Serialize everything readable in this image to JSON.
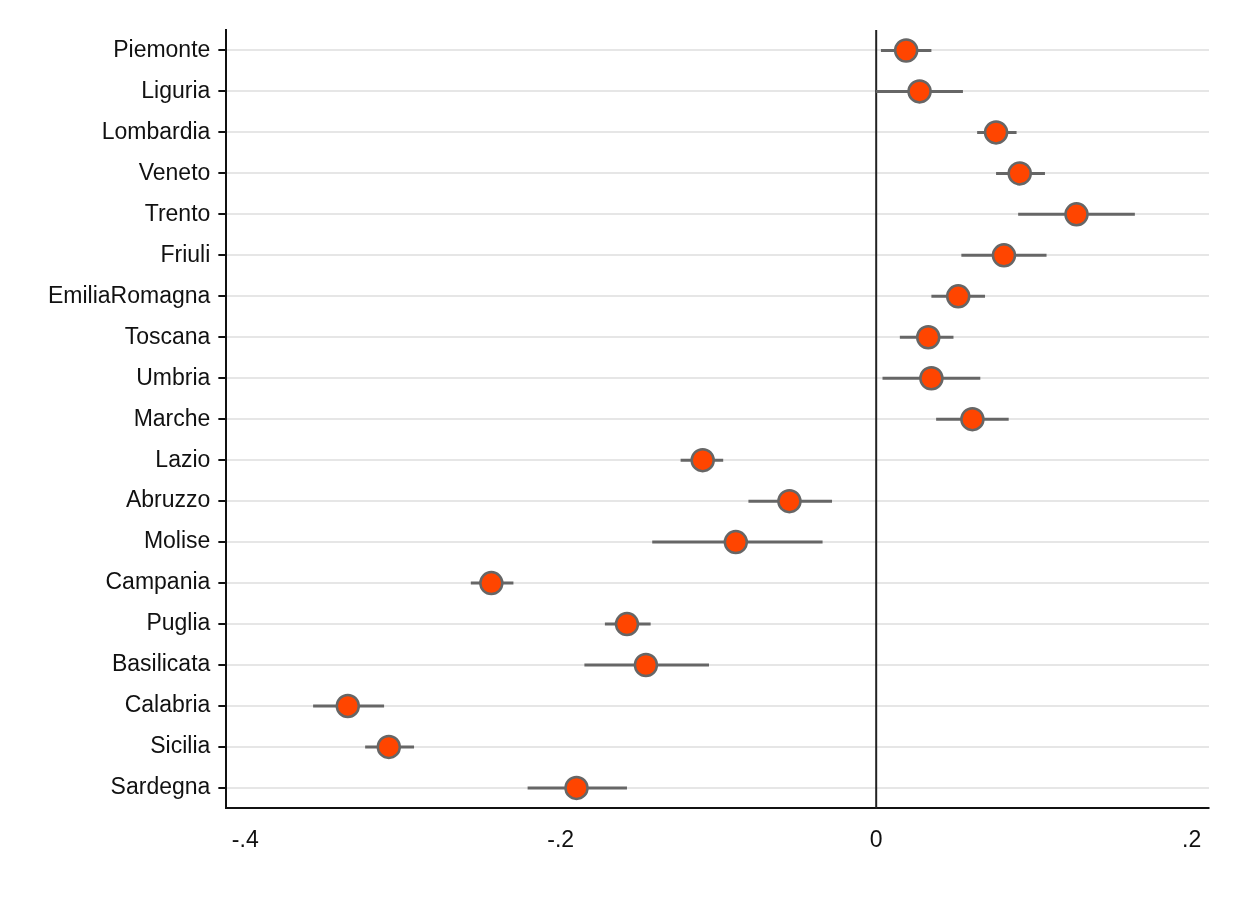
{
  "chart_data": {
    "type": "scatter",
    "orientation": "horizontal",
    "categories": [
      "Piemonte",
      "Liguria",
      "Lombardia",
      "Veneto",
      "Trento",
      "Friuli",
      "EmiliaRomagna",
      "Toscana",
      "Umbria",
      "Marche",
      "Lazio",
      "Abruzzo",
      "Molise",
      "Campania",
      "Puglia",
      "Basilicata",
      "Calabria",
      "Sicilia",
      "Sardegna"
    ],
    "series": [
      {
        "color": "#ff4500",
        "values": [
          0.019,
          0.0275,
          0.076,
          0.091,
          0.127,
          0.081,
          0.052,
          0.033,
          0.035,
          0.061,
          -0.11,
          -0.055,
          -0.089,
          -0.244,
          -0.158,
          -0.146,
          -0.335,
          -0.309,
          -0.19
        ],
        "errors": [
          [
            0.003,
            0.035
          ],
          [
            0.0,
            0.055
          ],
          [
            0.064,
            0.089
          ],
          [
            0.076,
            0.107
          ],
          [
            0.09,
            0.164
          ],
          [
            0.054,
            0.108
          ],
          [
            0.035,
            0.069
          ],
          [
            0.015,
            0.049
          ],
          [
            0.004,
            0.066
          ],
          [
            0.038,
            0.084
          ],
          [
            -0.124,
            -0.097
          ],
          [
            -0.081,
            -0.028
          ],
          [
            -0.142,
            -0.034
          ],
          [
            -0.257,
            -0.23
          ],
          [
            -0.172,
            -0.143
          ],
          [
            -0.185,
            -0.106
          ],
          [
            -0.357,
            -0.312
          ],
          [
            -0.324,
            -0.293
          ],
          [
            -0.221,
            -0.158
          ]
        ]
      }
    ],
    "xlim": [
      -0.412,
      0.211
    ],
    "xticks": [
      {
        "value": -0.4,
        "label": "-.4"
      },
      {
        "value": -0.2,
        "label": "-.2"
      },
      {
        "value": 0,
        "label": "0"
      },
      {
        "value": 0.2,
        "label": ".2"
      }
    ],
    "ref_lines": [
      {
        "axis": "x",
        "value": 0,
        "color": "#222222"
      }
    ],
    "grid": "y",
    "marker": "circle",
    "legend": false
  }
}
